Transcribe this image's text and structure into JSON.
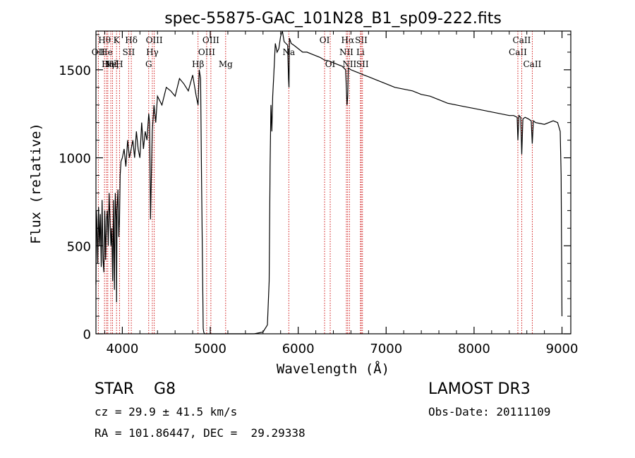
{
  "chart_data": {
    "type": "line",
    "title": "spec-55875-GAC_101N28_B1_sp09-222.fits",
    "xlabel": "Wavelength (Å)",
    "ylabel": "Flux (relative)",
    "xlim": [
      3700,
      9100
    ],
    "ylim": [
      0,
      1720
    ],
    "xticks": [
      4000,
      5000,
      6000,
      7000,
      8000,
      9000
    ],
    "yticks": [
      0,
      500,
      1000,
      1500
    ],
    "xtick_labels": [
      "4000",
      "5000",
      "6000",
      "7000",
      "8000",
      "9000"
    ],
    "ytick_labels": [
      "0",
      "500",
      "1000",
      "1500"
    ],
    "series": [
      {
        "name": "flux",
        "x": [
          3700,
          3705,
          3710,
          3720,
          3730,
          3740,
          3750,
          3760,
          3770,
          3780,
          3790,
          3800,
          3810,
          3820,
          3830,
          3840,
          3850,
          3860,
          3870,
          3880,
          3890,
          3900,
          3910,
          3920,
          3930,
          3934,
          3940,
          3950,
          3960,
          3968,
          3975,
          3985,
          4000,
          4020,
          4040,
          4060,
          4080,
          4100,
          4120,
          4140,
          4160,
          4180,
          4200,
          4220,
          4240,
          4260,
          4280,
          4300,
          4310,
          4320,
          4340,
          4360,
          4380,
          4400,
          4450,
          4500,
          4550,
          4600,
          4650,
          4700,
          4750,
          4800,
          4840,
          4861,
          4875,
          4890,
          4900,
          4920,
          4925,
          4930,
          4935,
          4960,
          5000,
          5100,
          5200,
          5300,
          5400,
          5500,
          5600,
          5650,
          5670,
          5680,
          5690,
          5700,
          5710,
          5720,
          5730,
          5740,
          5760,
          5780,
          5800,
          5820,
          5840,
          5860,
          5880,
          5890,
          5895,
          5900,
          5920,
          5950,
          6000,
          6050,
          6100,
          6150,
          6200,
          6250,
          6300,
          6350,
          6400,
          6450,
          6500,
          6540,
          6555,
          6563,
          6570,
          6600,
          6650,
          6700,
          6750,
          6800,
          6900,
          7000,
          7100,
          7200,
          7300,
          7400,
          7500,
          7600,
          7700,
          7800,
          7900,
          8000,
          8100,
          8200,
          8300,
          8400,
          8450,
          8490,
          8498,
          8510,
          8530,
          8542,
          8555,
          8580,
          8620,
          8650,
          8662,
          8675,
          8700,
          8800,
          8900,
          8950,
          8980,
          8990,
          9000
        ],
        "y": [
          280,
          700,
          650,
          400,
          720,
          500,
          680,
          380,
          760,
          420,
          350,
          700,
          420,
          650,
          700,
          500,
          800,
          650,
          500,
          600,
          300,
          760,
          250,
          800,
          650,
          180,
          700,
          820,
          550,
          650,
          900,
          980,
          1000,
          1050,
          950,
          1100,
          1000,
          1050,
          1100,
          1000,
          1150,
          1050,
          1000,
          1200,
          1050,
          1150,
          1100,
          1250,
          1200,
          650,
          1150,
          1300,
          1200,
          1350,
          1300,
          1400,
          1380,
          1350,
          1450,
          1420,
          1380,
          1470,
          1350,
          1300,
          1500,
          1450,
          900,
          30,
          10,
          5,
          0,
          0,
          0,
          0,
          0,
          0,
          0,
          0,
          10,
          50,
          300,
          950,
          1300,
          1150,
          1350,
          1450,
          1550,
          1650,
          1600,
          1620,
          1690,
          1720,
          1660,
          1650,
          1640,
          1450,
          1400,
          1680,
          1650,
          1640,
          1620,
          1600,
          1600,
          1590,
          1580,
          1570,
          1555,
          1550,
          1540,
          1530,
          1520,
          1500,
          1300,
          1350,
          1510,
          1500,
          1490,
          1480,
          1470,
          1460,
          1440,
          1420,
          1400,
          1390,
          1380,
          1360,
          1350,
          1330,
          1310,
          1300,
          1290,
          1280,
          1270,
          1260,
          1250,
          1240,
          1240,
          1230,
          1100,
          1240,
          1230,
          1020,
          1220,
          1230,
          1220,
          1210,
          1080,
          1210,
          1200,
          1190,
          1210,
          1200,
          1150,
          900,
          100
        ]
      }
    ],
    "lines": [
      {
        "x": 3727,
        "labels": [
          "OII"
        ],
        "row": 1
      },
      {
        "x": 3797,
        "labels": [
          "Hθ"
        ],
        "row": 0
      },
      {
        "x": 3820,
        "labels": [
          "He"
        ],
        "row": 1
      },
      {
        "x": 3835,
        "labels": [
          "Hη"
        ],
        "row": 2
      },
      {
        "x": 3869,
        "labels": [
          "Ne"
        ],
        "row": 2
      },
      {
        "x": 3889,
        "labels": [
          "Hζ"
        ],
        "row": 2
      },
      {
        "x": 3934,
        "labels": [
          "K"
        ],
        "row": 0
      },
      {
        "x": 3968,
        "labels": [
          "H"
        ],
        "row": 2
      },
      {
        "x": 4072,
        "labels": [
          "SII"
        ],
        "row": 1
      },
      {
        "x": 4102,
        "labels": [
          "Hδ"
        ],
        "row": 0
      },
      {
        "x": 4300,
        "labels": [
          "G"
        ],
        "row": 2
      },
      {
        "x": 4341,
        "labels": [
          "Hγ"
        ],
        "row": 1
      },
      {
        "x": 4363,
        "labels": [
          "OIII"
        ],
        "row": 0
      },
      {
        "x": 4861,
        "labels": [
          "Hβ"
        ],
        "row": 2
      },
      {
        "x": 4959,
        "labels": [
          "OIII"
        ],
        "row": 1
      },
      {
        "x": 5007,
        "labels": [
          "OIII"
        ],
        "row": 0
      },
      {
        "x": 5175,
        "labels": [
          "Mg"
        ],
        "row": 2
      },
      {
        "x": 5893,
        "labels": [
          "Na"
        ],
        "row": 1
      },
      {
        "x": 6300,
        "labels": [
          "OI"
        ],
        "row": 0
      },
      {
        "x": 6364,
        "labels": [
          "OI"
        ],
        "row": 2
      },
      {
        "x": 6548,
        "labels": [
          "NII"
        ],
        "row": 1
      },
      {
        "x": 6563,
        "labels": [
          "Hα"
        ],
        "row": 0
      },
      {
        "x": 6583,
        "labels": [
          "NII"
        ],
        "row": 2
      },
      {
        "x": 6708,
        "labels": [
          "Li"
        ],
        "row": 1
      },
      {
        "x": 6717,
        "labels": [
          "SII"
        ],
        "row": 0
      },
      {
        "x": 6731,
        "labels": [
          "SII"
        ],
        "row": 2
      },
      {
        "x": 8498,
        "labels": [
          "CaII"
        ],
        "row": 1
      },
      {
        "x": 8542,
        "labels": [
          "CaII"
        ],
        "row": 0
      },
      {
        "x": 8662,
        "labels": [
          "CaII"
        ],
        "row": 2
      }
    ]
  },
  "info": {
    "class_text": "STAR    G8",
    "survey_text": "LAMOST DR3",
    "cz_text": "cz = 29.9 ± 41.5 km/s",
    "obsdate_text": "Obs-Date: 20111109",
    "radec_text": "RA = 101.86447, DEC =  29.29338"
  },
  "colors": {
    "line": "#000000",
    "marker": "#cc0000"
  }
}
